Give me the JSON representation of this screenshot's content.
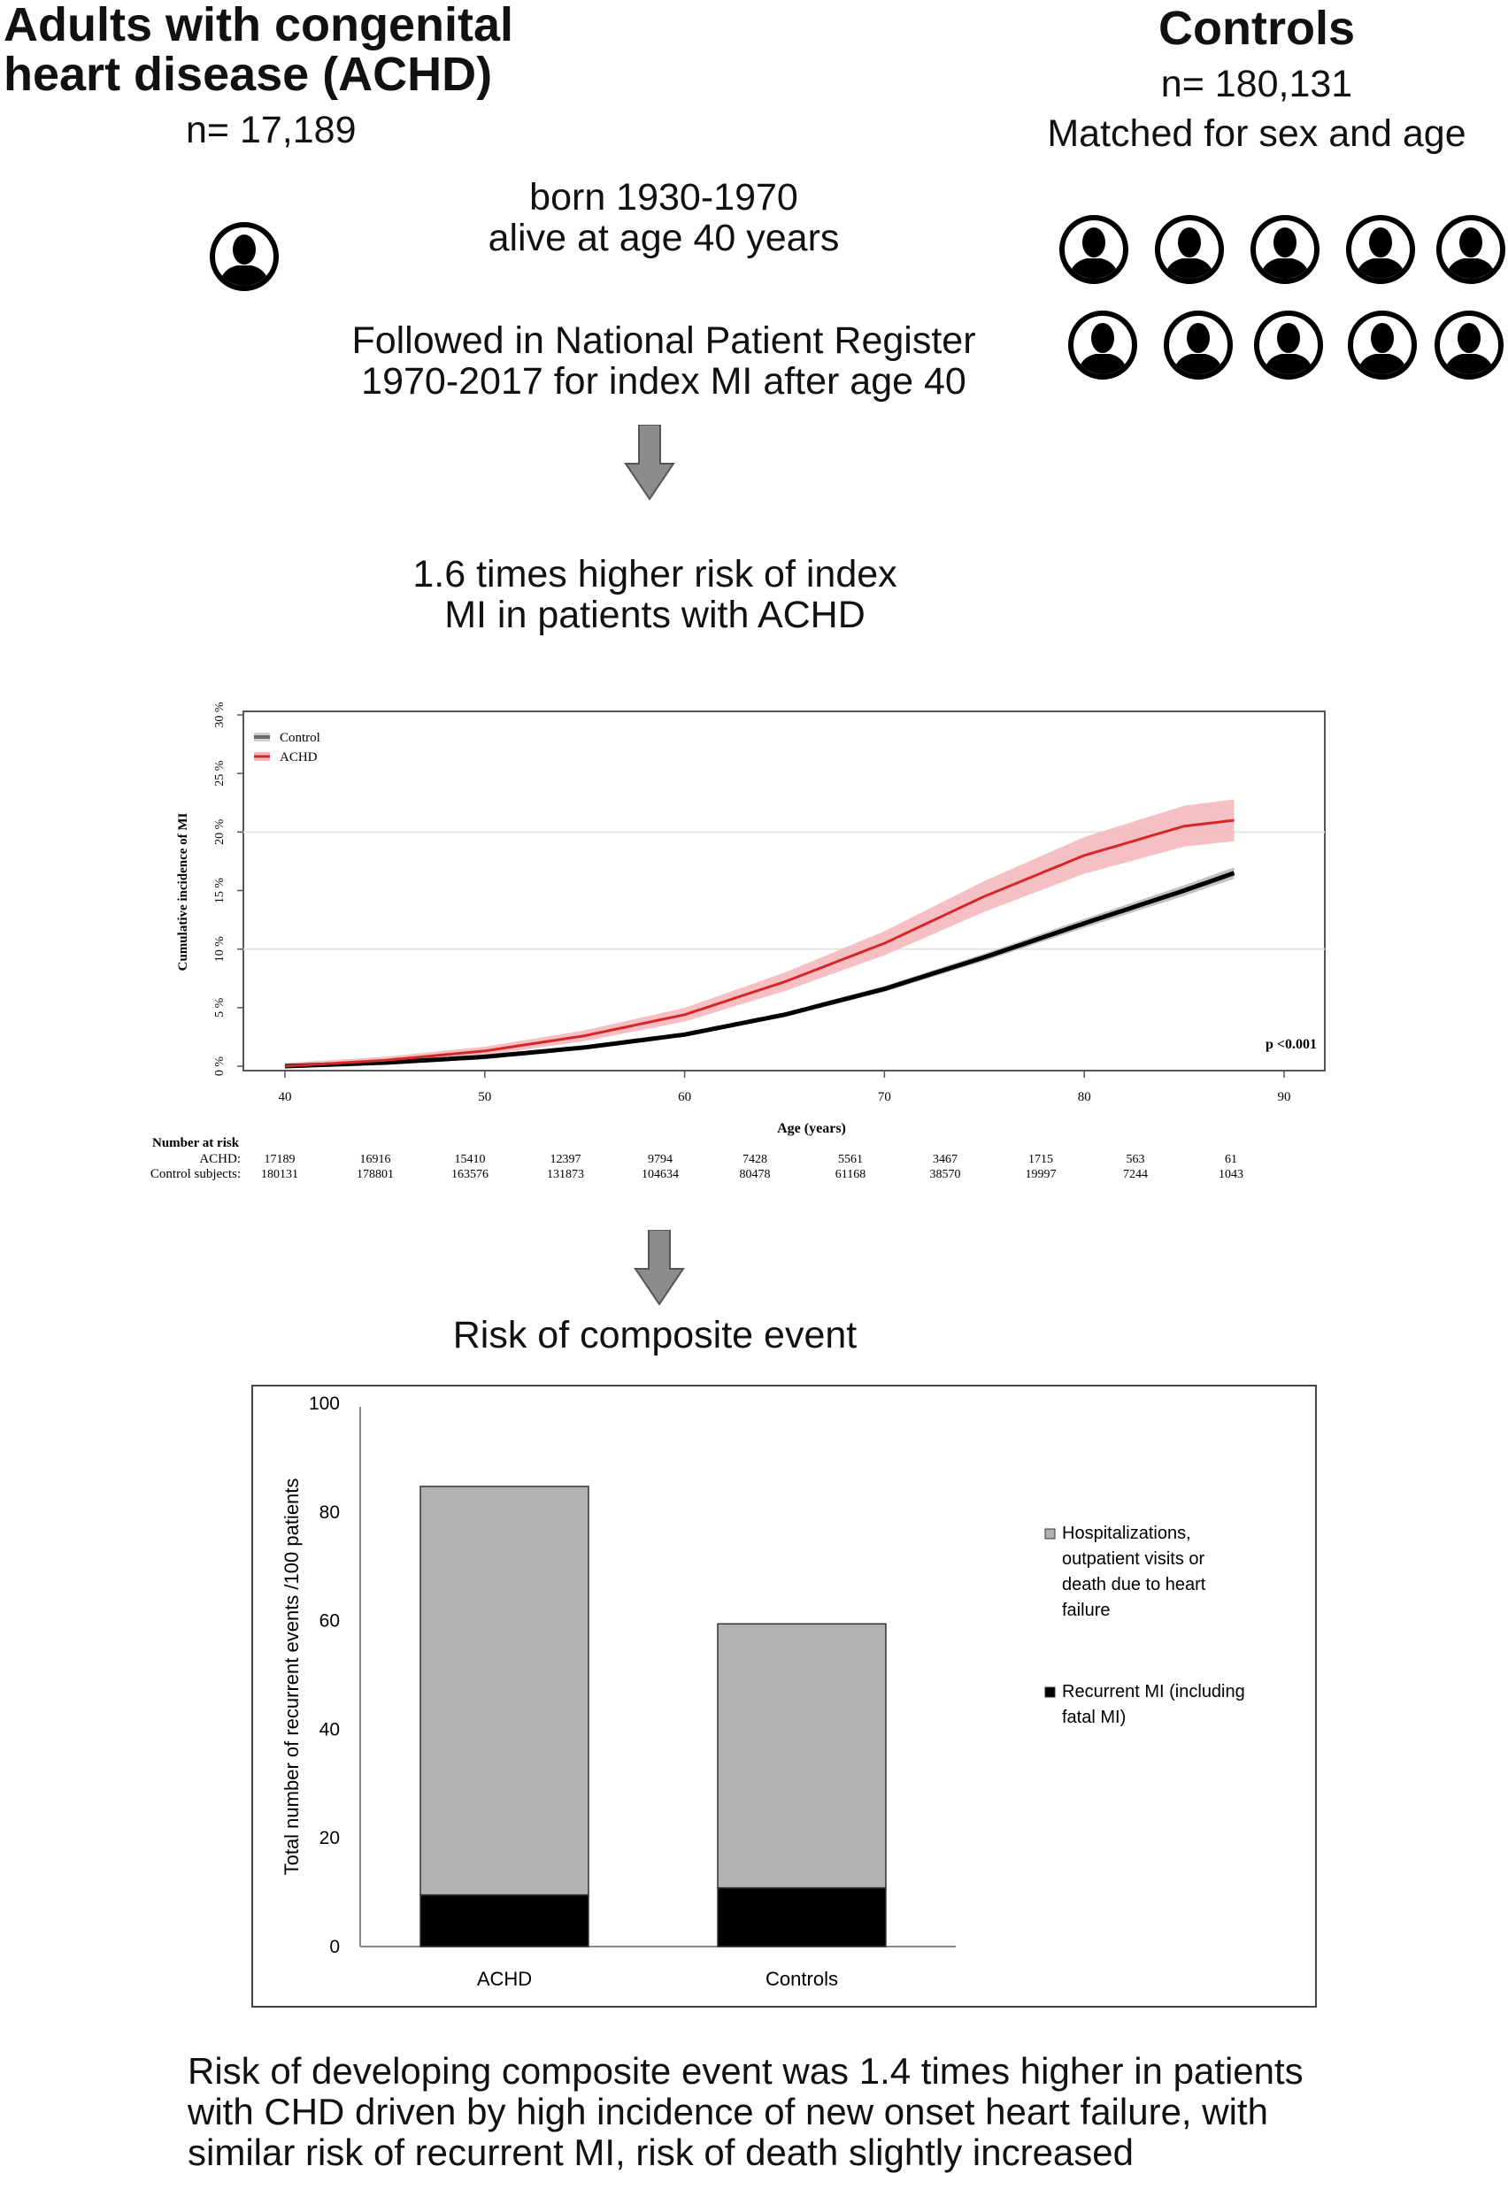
{
  "left_group": {
    "title": "Adults with congenital heart disease  (ACHD)",
    "count": "n= 17,189"
  },
  "right_group": {
    "title": "Controls",
    "count": "n= 180,131",
    "subtitle": "Matched for sex and age"
  },
  "cohort": {
    "line1": "born 1930-1970",
    "line2": "alive at age 40 years",
    "followup1": "Followed in National Patient Register",
    "followup2": "1970-2017 for index MI after age 40"
  },
  "finding1": {
    "line1": "1.6 times higher risk of  index",
    "line2": "MI in patients with ACHD"
  },
  "section2_title": "Risk of composite event",
  "conclusion": "Risk of developing composite event was 1.4 times higher in patients with CHD driven by high incidence of new onset heart failure, with similar risk of recurrent MI, risk of death slightly increased",
  "icons": {
    "person": "person-silhouette-icon",
    "arrow": "down-arrow-icon"
  },
  "colors": {
    "control_line": "#000000",
    "achd_line": "#d62728",
    "achd_band": "#f4b8bc",
    "control_band": "#b0b0b0",
    "bar_hf": "#b2b2b2",
    "bar_mi": "#000000"
  },
  "chart_data": [
    {
      "type": "line",
      "ylabel": "Cumulative incidence of MI",
      "xlabel": "Age (years)",
      "xlim": [
        38,
        90
      ],
      "ylim": [
        0,
        30
      ],
      "x_ticks": [
        40,
        50,
        60,
        70,
        80,
        90
      ],
      "y_ticks": [
        "0 %",
        "5 %",
        "10 %",
        "15 %",
        "20 %",
        "25 %",
        "30 %"
      ],
      "grid": "horizontal at 10 % and 20 %",
      "legend_position": "top-left",
      "annotation": "p <0.001",
      "series": [
        {
          "name": "Control",
          "x": [
            40,
            45,
            50,
            55,
            60,
            65,
            70,
            75,
            80,
            85,
            87.5
          ],
          "y": [
            0,
            0.3,
            0.8,
            1.6,
            2.7,
            4.4,
            6.6,
            9.3,
            12.2,
            15.0,
            16.5
          ]
        },
        {
          "name": "ACHD",
          "x": [
            40,
            45,
            50,
            55,
            60,
            65,
            70,
            75,
            80,
            85,
            87.5
          ],
          "y": [
            0,
            0.5,
            1.3,
            2.6,
            4.4,
            7.2,
            10.5,
            14.5,
            18.0,
            20.5,
            21.0
          ]
        }
      ],
      "risk_table": {
        "title": "Number at risk",
        "rows": [
          {
            "label": "ACHD:",
            "values": [
              "17189",
              "16916",
              "15410",
              "12397",
              "9794",
              "7428",
              "5561",
              "3467",
              "1715",
              "563",
              "61"
            ]
          },
          {
            "label": "Control subjects:",
            "values": [
              "180131",
              "178801",
              "163576",
              "131873",
              "104634",
              "80478",
              "61168",
              "38570",
              "19997",
              "7244",
              "1043"
            ]
          }
        ]
      }
    },
    {
      "type": "bar",
      "stacked": true,
      "categories": [
        "ACHD",
        "Controls"
      ],
      "ylabel": "Total number of recurrent events /100 patients",
      "ylim": [
        0,
        100
      ],
      "y_ticks": [
        "0",
        "20",
        "40",
        "60",
        "80",
        "100"
      ],
      "legend_position": "right",
      "series": [
        {
          "name": "Recurrent MI (including fatal MI)",
          "values": [
            9.5,
            10.8
          ]
        },
        {
          "name": "Hospitalizations, outpatient visits or death due to heart failure",
          "values": [
            75.2,
            48.6
          ]
        }
      ],
      "legend_items": [
        {
          "lines": [
            "Hospitalizations,",
            "outpatient visits or",
            "death due to heart",
            "failure"
          ]
        },
        {
          "lines": [
            "Recurrent MI (including",
            "fatal MI)"
          ]
        }
      ]
    }
  ]
}
